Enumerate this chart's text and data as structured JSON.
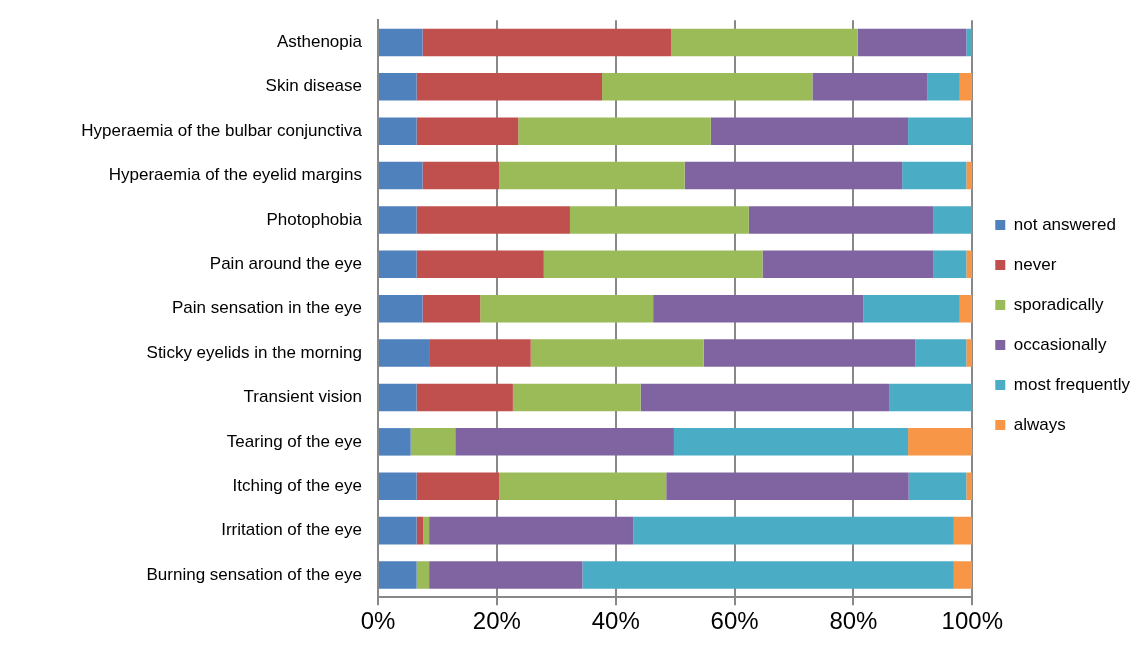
{
  "chart_data": {
    "type": "bar",
    "orientation": "horizontal",
    "stacked": true,
    "categories": [
      "Asthenopia",
      "Skin disease",
      "Hyperaemia of the bulbar conjunctiva",
      "Hyperaemia of the eyelid margins",
      "Photophobia",
      "Pain around the eye",
      "Pain sensation in the eye",
      "Sticky eyelids in the morning",
      "Transient vision",
      "Tearing of the eye",
      "Itching of the eye",
      "Irritation of the eye",
      "Burning sensation of the eye"
    ],
    "series": [
      {
        "name": "not answered",
        "color": "#4f81bd",
        "values": [
          7.5,
          6.5,
          6.5,
          7.5,
          6.5,
          6.5,
          7.5,
          8.6,
          6.5,
          5.5,
          6.5,
          6.5,
          6.5
        ]
      },
      {
        "name": "never",
        "color": "#c0504d",
        "values": [
          41.8,
          31.2,
          17.1,
          12.9,
          25.8,
          21.4,
          9.7,
          17.1,
          16.2,
          0,
          13.9,
          1.1,
          0
        ]
      },
      {
        "name": "sporadically",
        "color": "#9bbb59",
        "values": [
          31.4,
          35.4,
          32.4,
          31.2,
          30.1,
          36.8,
          29.1,
          29.1,
          21.5,
          7.5,
          28.1,
          1.0,
          2.1
        ]
      },
      {
        "name": "occasionally",
        "color": "#8064a2",
        "values": [
          18.3,
          19.3,
          33.2,
          36.6,
          31.1,
          28.8,
          35.4,
          35.6,
          41.8,
          36.8,
          40.8,
          34.4,
          25.8
        ]
      },
      {
        "name": "most frequently",
        "color": "#4bacc6",
        "values": [
          1.0,
          5.5,
          10.8,
          10.8,
          6.5,
          5.5,
          16.2,
          8.6,
          14.0,
          39.4,
          9.7,
          53.9,
          62.5
        ]
      },
      {
        "name": "always",
        "color": "#f79646",
        "values": [
          0,
          2.1,
          0,
          1.0,
          0,
          1.0,
          2.1,
          1.0,
          0,
          10.8,
          1.0,
          3.1,
          3.1
        ]
      }
    ],
    "xlim": [
      0,
      100
    ],
    "xticks": [
      {
        "value": 0,
        "label": "0%"
      },
      {
        "value": 20,
        "label": "20%"
      },
      {
        "value": 40,
        "label": "40%"
      },
      {
        "value": 60,
        "label": "60%"
      },
      {
        "value": 80,
        "label": "80%"
      },
      {
        "value": 100,
        "label": "100%"
      }
    ],
    "grid": "x",
    "legend": "right"
  }
}
